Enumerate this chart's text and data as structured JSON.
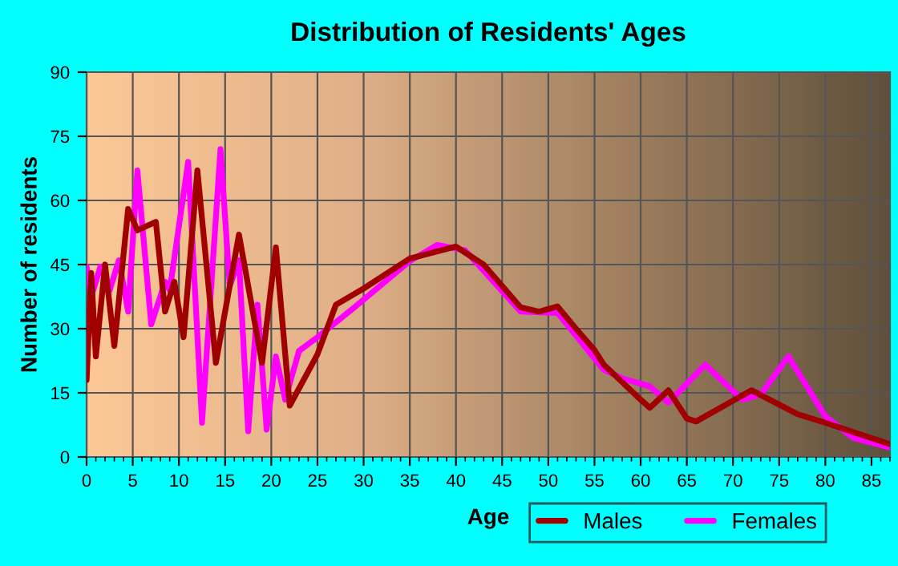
{
  "chart_data": {
    "type": "line",
    "title": "Distribution of Residents' Ages",
    "xlabel": "Age",
    "ylabel": "Number of residents",
    "xlim": [
      0,
      87
    ],
    "xticks": [
      0,
      5,
      10,
      15,
      20,
      25,
      30,
      35,
      40,
      45,
      50,
      55,
      60,
      65,
      70,
      75,
      80,
      85
    ],
    "ylim": [
      0,
      90
    ],
    "yticks": [
      0,
      15,
      30,
      45,
      60,
      75,
      90
    ],
    "grid": true,
    "legend": "bottom right",
    "line_style": "solid",
    "marker": "none",
    "series": [
      {
        "name": "Males",
        "color": "#a00000",
        "x": [
          0,
          0.5,
          1,
          2,
          3,
          4.5,
          5.5,
          7.5,
          8.5,
          9.5,
          10.5,
          12,
          14,
          16.5,
          19,
          20.5,
          22,
          25,
          27,
          30,
          35,
          40,
          43,
          47,
          49,
          51,
          53,
          55,
          56,
          60,
          61,
          63,
          65,
          66,
          72,
          77,
          80,
          87
        ],
        "values": [
          18,
          43,
          23.5,
          45,
          26,
          58,
          53,
          55,
          34,
          41,
          28,
          67,
          22,
          52,
          22,
          49,
          12,
          24,
          35.6,
          39.4,
          46.4,
          49.2,
          45,
          35,
          34,
          35.2,
          30,
          25,
          21.6,
          13.4,
          11.5,
          15.6,
          9,
          8.3,
          15.6,
          10,
          8,
          3
        ]
      },
      {
        "name": "Females",
        "color": "#ff00ff",
        "x": [
          0,
          0.5,
          1.5,
          2.5,
          3.5,
          4.5,
          5.5,
          7,
          8.5,
          9,
          11,
          12.5,
          14.5,
          15.5,
          16.5,
          17.5,
          18.5,
          19.5,
          20.5,
          21.5,
          23,
          25,
          29,
          35,
          38,
          41,
          47,
          51,
          56,
          58,
          61,
          63,
          67,
          71,
          73,
          76,
          80,
          83,
          87
        ],
        "values": [
          44.5,
          37.5,
          44.5,
          39,
          46,
          34,
          67,
          31,
          41,
          39,
          69,
          8,
          72,
          40,
          46,
          6,
          35.6,
          6.4,
          23.5,
          13.4,
          24.8,
          28,
          35,
          45.8,
          49.6,
          48.3,
          34,
          33.7,
          20.4,
          18.4,
          16.5,
          12.7,
          21.6,
          13.4,
          14.6,
          23.5,
          9.5,
          4.5,
          2.2
        ]
      }
    ]
  }
}
